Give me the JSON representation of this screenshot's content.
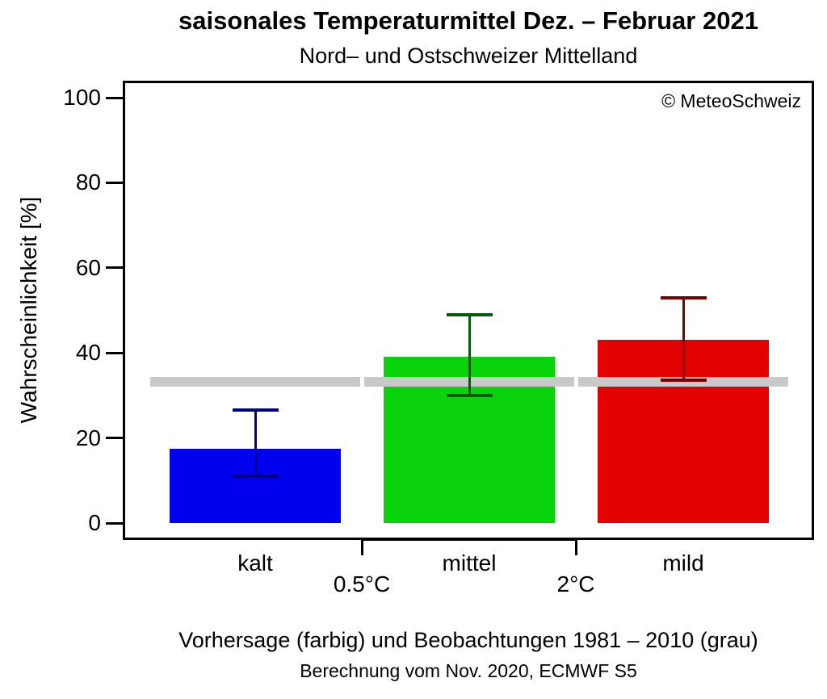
{
  "header": {
    "title": "saisonales Temperaturmittel Dez. – Februar 2021",
    "subtitle": "Nord– und Ostschweizer Mittelland"
  },
  "plot": {
    "copyright": "© MeteoSchweiz",
    "y_axis_label": "Wahrscheinlichkeit [%]"
  },
  "footer": {
    "caption": "Vorhersage (farbig) und Beobachtungen 1981 – 2010 (grau)",
    "subcaption": "Berechnung vom Nov. 2020, ECMWF S5"
  },
  "chart_data": {
    "type": "bar",
    "title": "saisonales Temperaturmittel Dez. – Februar 2021",
    "subtitle": "Nord– und Ostschweizer Mittelland",
    "ylabel": "Wahrscheinlichkeit [%]",
    "xlabel": "",
    "ylim": [
      0,
      100
    ],
    "yticks": [
      0,
      20,
      40,
      60,
      80,
      100
    ],
    "grid": false,
    "legend_position": "none",
    "categories": [
      "kalt",
      "mittel",
      "mild"
    ],
    "values": [
      17.5,
      39,
      43
    ],
    "error_low": [
      11,
      30,
      33.5
    ],
    "error_high": [
      26.5,
      49,
      53
    ],
    "reference_value": 33.3,
    "reference_series_label": "Beobachtungen 1981 – 2010 (grau)",
    "forecast_series_label": "Vorhersage (farbig)",
    "threshold_labels": [
      "0.5°C",
      "2°C"
    ],
    "bar_colors": [
      "#0000EE",
      "#0BD30B",
      "#E30000"
    ],
    "whisker_colors": [
      "#000080",
      "#0A5A0A",
      "#7B0000"
    ],
    "reference_color": "#C9C9C9"
  }
}
